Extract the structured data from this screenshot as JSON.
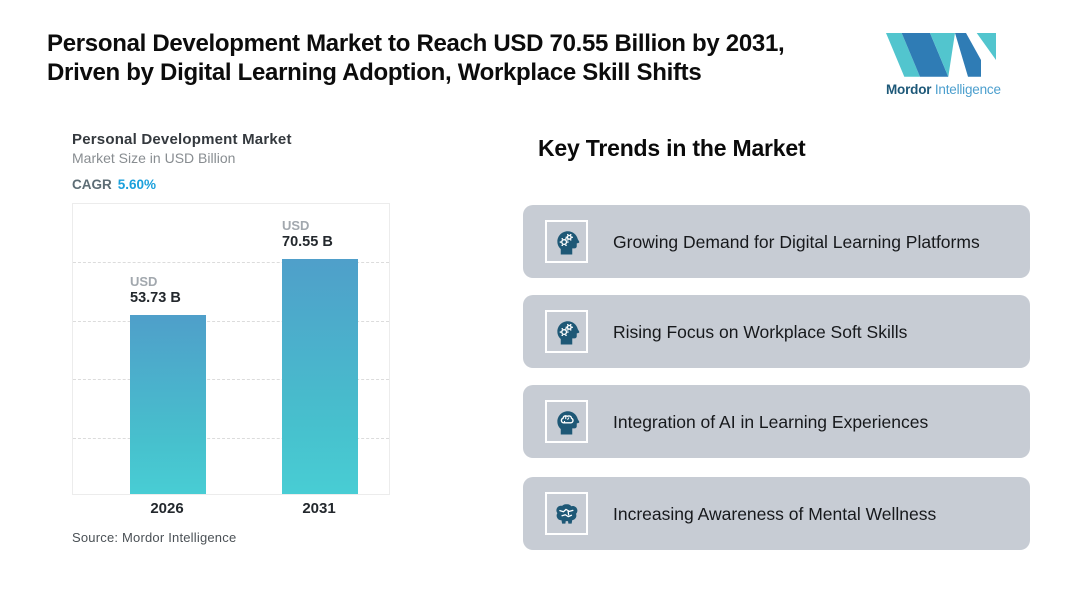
{
  "header": {
    "title_lines": [
      "Personal Development Market to Reach USD 70.55 Billion by 2031,",
      "Driven by Digital Learning Adoption, Workplace Skill Shifts"
    ]
  },
  "logo": {
    "brand_bold": "Mordor",
    "brand_light": "Intelligence",
    "teal": "#52c5ce",
    "blue": "#2f7cb5",
    "text_dark": "#1d5878",
    "text_light": "#4c9fce"
  },
  "chart_data": {
    "type": "bar",
    "title": "Personal Development Market",
    "subtitle": "Market Size in USD Billion",
    "cagr_label": "CAGR",
    "cagr_value": "5.60%",
    "categories": [
      "2026",
      "2031"
    ],
    "values": [
      53.73,
      70.55
    ],
    "value_labels": [
      {
        "prefix": "USD",
        "text": "53.73 B"
      },
      {
        "prefix": "USD",
        "text": "70.55 B"
      }
    ],
    "unit": "USD Billion",
    "ylim": [
      0,
      87
    ],
    "grid": "horizontal dashed, no tick labels",
    "legend": "none",
    "bar_gradient_top": "#4f9fca",
    "bar_gradient_bottom": "#48cdd4",
    "source": "Source: Mordor Intelligence"
  },
  "trends": {
    "heading": "Key Trends in the Market",
    "card_background": "#c7ccd4",
    "icon_color": "#1e5876",
    "items": [
      {
        "icon": "head-gears-icon",
        "text": "Growing Demand for Digital Learning Platforms"
      },
      {
        "icon": "head-gears-icon",
        "text": "Rising Focus on Workplace Soft Skills"
      },
      {
        "icon": "head-brain-icon",
        "text": "Integration of AI in Learning Experiences"
      },
      {
        "icon": "brain-icon",
        "text": "Increasing Awareness of Mental Wellness"
      }
    ]
  }
}
